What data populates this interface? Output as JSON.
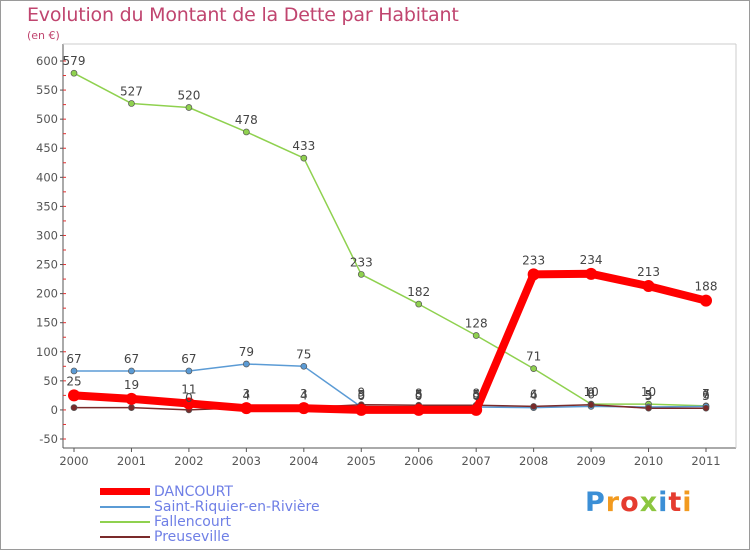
{
  "chart_data": {
    "type": "line",
    "title": "Evolution du Montant de la Dette par Habitant",
    "subtitle": "(en €)",
    "xlabel": "",
    "ylabel": "",
    "ylim": [
      -50,
      600
    ],
    "yticks": [
      -50,
      0,
      50,
      100,
      150,
      200,
      250,
      300,
      350,
      400,
      450,
      500,
      550,
      600
    ],
    "x": [
      "2000",
      "2001",
      "2002",
      "2003",
      "2004",
      "2005",
      "2006",
      "2007",
      "2008",
      "2009",
      "2010",
      "2011"
    ],
    "series": [
      {
        "name": "DANCOURT",
        "color": "#ff0000",
        "labels": [
          "25",
          "19",
          "11",
          "3",
          "3",
          "0",
          "0",
          "0",
          "233",
          "234",
          "213",
          "188"
        ],
        "values": [
          25,
          19,
          11,
          3,
          3,
          0,
          0,
          0,
          233,
          234,
          213,
          188
        ]
      },
      {
        "name": "Saint-Riquier-en-Rivière",
        "color": "#5b9bd5",
        "labels": [
          "67",
          "67",
          "67",
          "79",
          "75",
          "5",
          "5",
          "5",
          "4",
          "6",
          "5",
          "6"
        ],
        "values": [
          67,
          67,
          67,
          79,
          75,
          5,
          5,
          5,
          4,
          6,
          5,
          6
        ]
      },
      {
        "name": "Fallencourt",
        "color": "#8fd14f",
        "labels": [
          "579",
          "527",
          "520",
          "478",
          "433",
          "233",
          "182",
          "128",
          "71",
          "10",
          "10",
          "7"
        ],
        "values": [
          579,
          527,
          520,
          478,
          433,
          233,
          182,
          128,
          71,
          10,
          10,
          7
        ]
      },
      {
        "name": "Preuseville",
        "color": "#7a2a2a",
        "labels": [
          "",
          "",
          "0",
          "4",
          "4",
          "9",
          "8",
          "8",
          "6",
          "9",
          "3",
          "3"
        ],
        "values": [
          4,
          4,
          0,
          4,
          4,
          9,
          8,
          8,
          6,
          9,
          3,
          3
        ]
      }
    ],
    "legend": "bottom-left"
  },
  "logo_text": "Proxiti",
  "colors": {
    "title": "#c0456f",
    "axis": "#555555"
  }
}
